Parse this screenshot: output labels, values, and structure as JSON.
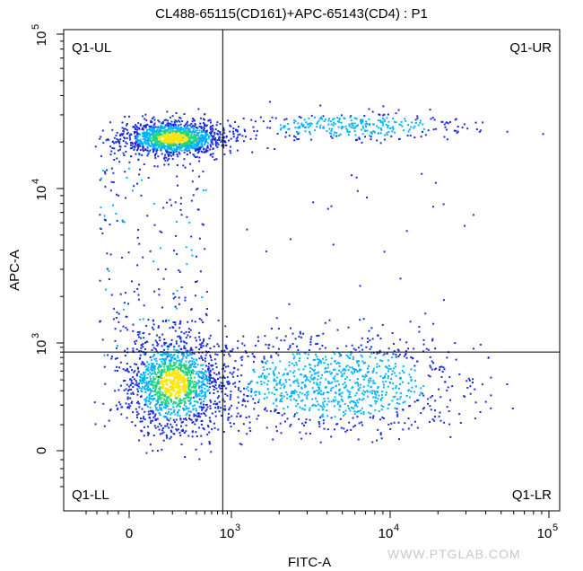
{
  "chart_data": {
    "type": "scatter",
    "title": "CL488-65115(CD161)+APC-65143(CD4) : P1",
    "xlabel": "FITC-A",
    "ylabel": "APC-A",
    "x_scale": "biexponential",
    "y_scale": "biexponential",
    "xlim": [
      -500,
      100000
    ],
    "ylim": [
      -500,
      100000
    ],
    "x_ticks": [
      {
        "value": 0,
        "label": "0"
      },
      {
        "value": 1000,
        "label": "10",
        "exp": "3"
      },
      {
        "value": 10000,
        "label": "10",
        "exp": "4"
      },
      {
        "value": 100000,
        "label": "10",
        "exp": "5"
      }
    ],
    "y_ticks": [
      {
        "value": 0,
        "label": "0"
      },
      {
        "value": 1000,
        "label": "10",
        "exp": "3"
      },
      {
        "value": 10000,
        "label": "10",
        "exp": "4"
      },
      {
        "value": 100000,
        "label": "10",
        "exp": "5"
      }
    ],
    "gate": {
      "x": 800,
      "y": 800
    },
    "quadrants": [
      {
        "name": "Q1-UL",
        "position": "top-left"
      },
      {
        "name": "Q1-UR",
        "position": "top-right"
      },
      {
        "name": "Q1-LL",
        "position": "bottom-left"
      },
      {
        "name": "Q1-LR",
        "position": "bottom-right"
      }
    ],
    "populations": [
      {
        "quadrant": "Q1-UL",
        "center": {
          "x": 150,
          "y": 22000
        },
        "density": "high"
      },
      {
        "quadrant": "Q1-UR",
        "center": {
          "x": 3000,
          "y": 25000
        },
        "density": "low"
      },
      {
        "quadrant": "Q1-LL",
        "center": {
          "x": 130,
          "y": 150
        },
        "density": "high"
      },
      {
        "quadrant": "Q1-LR",
        "center": {
          "x": 3000,
          "y": 150
        },
        "density": "medium"
      }
    ],
    "grid": false,
    "density_colors": [
      "#1a2bd6",
      "#00b3ff",
      "#22d47e",
      "#ffe600"
    ]
  },
  "watermark": "WWW.PTGLAB.COM"
}
